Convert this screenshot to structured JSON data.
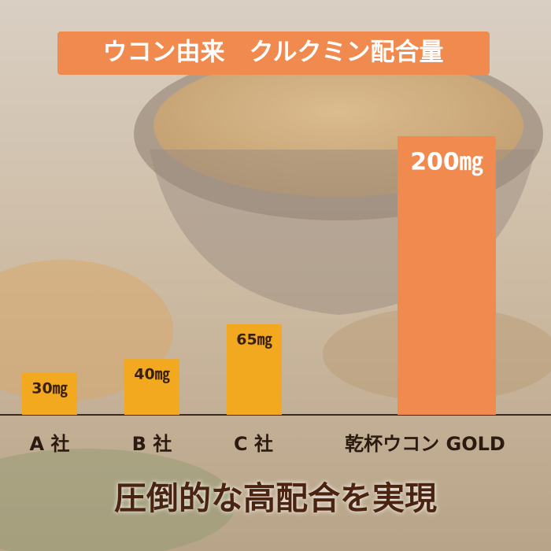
{
  "chart_data": {
    "type": "bar",
    "title": "ウコン由来　クルクミン配合量",
    "categories": [
      "A 社",
      "B 社",
      "C 社",
      "乾杯ウコン GOLD"
    ],
    "values": [
      30,
      40,
      65,
      200
    ],
    "value_labels": [
      "30㎎",
      "40㎎",
      "65㎎",
      "200㎎"
    ],
    "colors": [
      "#f2a91f",
      "#f2a91f",
      "#f2a91f",
      "#f08a4e"
    ],
    "annotation": "圧倒的な高配合を実現"
  }
}
